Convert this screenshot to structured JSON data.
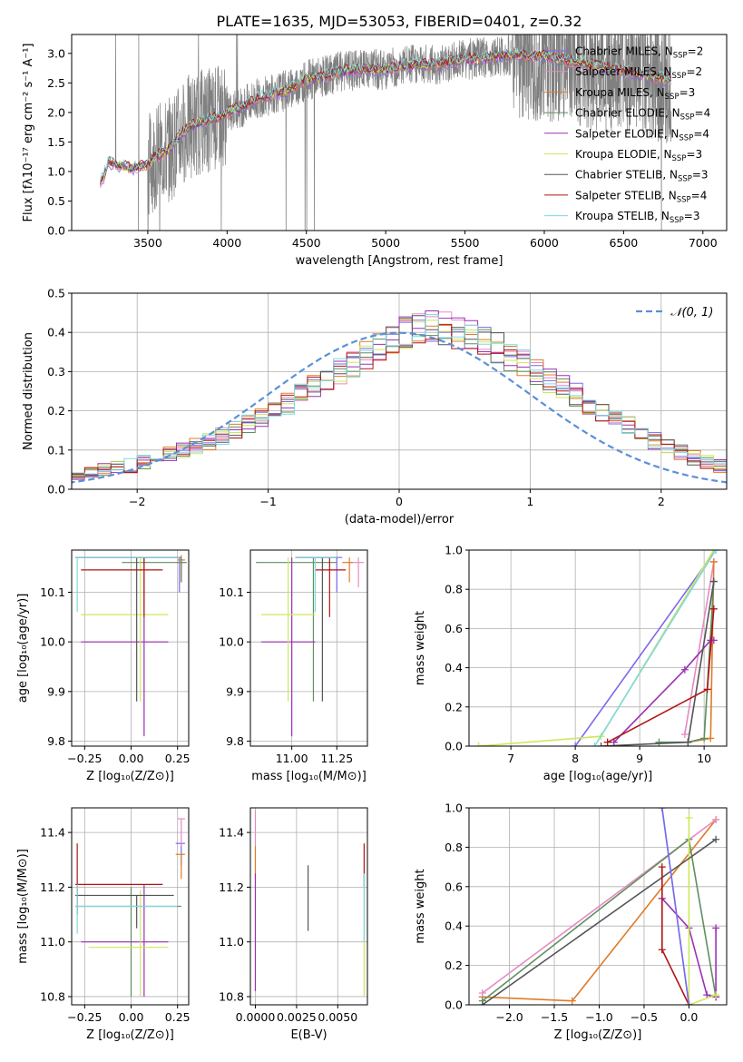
{
  "page_title": "PLATE=1635, MJD=53053, FIBERID=0401, z=0.32",
  "colors": {
    "chabrier_miles": "#7b68ee",
    "salpeter_miles": "#e78ac3",
    "kroupa_miles": "#e07b28",
    "chabrier_elodie": "#5f8f5f",
    "salpeter_elodie": "#9b30b5",
    "kroupa_elodie": "#cde85a",
    "chabrier_stelib": "#555555",
    "salpeter_stelib": "#b01515",
    "kroupa_stelib": "#80d8e0",
    "data": "#808080",
    "normal": "#5b8fd9"
  },
  "chart_data": [
    {
      "id": "spectrum",
      "type": "line",
      "title": "PLATE=1635, MJD=53053, FIBERID=0401, z=0.32",
      "xlabel": "wavelength [Angstrom, rest frame]",
      "ylabel": "Flux [fλ10⁻¹⁷ erg cm⁻² s⁻¹ A⁻¹]",
      "xlim": [
        3020,
        7150
      ],
      "ylim": [
        0,
        3.32
      ],
      "xticks": [
        3500,
        4000,
        4500,
        5000,
        5500,
        6000,
        6500,
        7000
      ],
      "yticks": [
        0.0,
        0.5,
        1.0,
        1.5,
        2.0,
        2.5,
        3.0
      ],
      "continuum": {
        "x": [
          3200,
          3220,
          3250,
          3300,
          3400,
          3500,
          3550,
          3650,
          3700,
          3750,
          3850,
          3950,
          4000,
          4100,
          4200,
          4300,
          4400,
          4500,
          4600,
          4700,
          4800,
          4900,
          5000,
          5100,
          5200,
          5300,
          5400,
          5500,
          5600,
          5700,
          5800,
          5900,
          6000,
          6100,
          6200,
          6300,
          6400,
          6500,
          6600,
          6700,
          6800
        ],
        "y": [
          0.82,
          0.9,
          1.15,
          1.12,
          1.05,
          1.12,
          1.25,
          1.4,
          1.6,
          1.75,
          1.85,
          1.92,
          2.0,
          2.1,
          2.25,
          2.32,
          2.4,
          2.55,
          2.6,
          2.68,
          2.72,
          2.74,
          2.72,
          2.78,
          2.82,
          2.8,
          2.85,
          2.9,
          2.92,
          2.95,
          2.98,
          2.96,
          2.95,
          2.9,
          2.85,
          2.8,
          2.75,
          2.7,
          2.65,
          2.6,
          2.55
        ]
      },
      "legend": [
        {
          "label": "Chabrier MILES, N",
          "sub": "SSP",
          "suffix": "=2",
          "color_key": "chabrier_miles"
        },
        {
          "label": "Salpeter MILES, N",
          "sub": "SSP",
          "suffix": "=2",
          "color_key": "salpeter_miles"
        },
        {
          "label": "Kroupa MILES, N",
          "sub": "SSP",
          "suffix": "=3",
          "color_key": "kroupa_miles"
        },
        {
          "label": "Chabrier ELODIE, N",
          "sub": "SSP",
          "suffix": "=4",
          "color_key": "chabrier_elodie"
        },
        {
          "label": "Salpeter ELODIE, N",
          "sub": "SSP",
          "suffix": "=4",
          "color_key": "salpeter_elodie"
        },
        {
          "label": "Kroupa ELODIE, N",
          "sub": "SSP",
          "suffix": "=3",
          "color_key": "kroupa_elodie"
        },
        {
          "label": "Chabrier STELIB, N",
          "sub": "SSP",
          "suffix": "=3",
          "color_key": "chabrier_stelib"
        },
        {
          "label": "Salpeter STELIB, N",
          "sub": "SSP",
          "suffix": "=4",
          "color_key": "salpeter_stelib"
        },
        {
          "label": "Kroupa STELIB, N",
          "sub": "SSP",
          "suffix": "=3",
          "color_key": "kroupa_stelib"
        }
      ]
    },
    {
      "id": "residuals",
      "type": "line",
      "xlabel": "(data-model)/error",
      "ylabel": "Normed distribution",
      "xlim": [
        -2.5,
        2.5
      ],
      "ylim": [
        0,
        0.5
      ],
      "xticks": [
        -2,
        -1,
        0,
        1,
        2
      ],
      "xticklabels": [
        "−2",
        "−1",
        "0",
        "1",
        "2"
      ],
      "yticks": [
        0.0,
        0.1,
        0.2,
        0.3,
        0.4,
        0.5
      ],
      "legend": "𝒩(0, 1)",
      "bin_width": 0.1,
      "base_hist": [
        0.015,
        0.02,
        0.025,
        0.03,
        0.035,
        0.04,
        0.045,
        0.05,
        0.055,
        0.06,
        0.07,
        0.08,
        0.09,
        0.1,
        0.11,
        0.12,
        0.135,
        0.15,
        0.165,
        0.18,
        0.2,
        0.22,
        0.24,
        0.26,
        0.28,
        0.3,
        0.32,
        0.34,
        0.36,
        0.38,
        0.4,
        0.41,
        0.42,
        0.41,
        0.4,
        0.39,
        0.38,
        0.36,
        0.34,
        0.32,
        0.3,
        0.28,
        0.26,
        0.24,
        0.22,
        0.2,
        0.18,
        0.16,
        0.14,
        0.125,
        0.11,
        0.095,
        0.08,
        0.07,
        0.06,
        0.05,
        0.045,
        0.04,
        0.035,
        0.03
      ]
    },
    {
      "id": "age-vs-z",
      "type": "scatter",
      "xlabel": "Z [log₁₀(Z/Z⊙)]",
      "ylabel": "age  [log₁₀(age/yr)]",
      "xlim": [
        -0.32,
        0.31
      ],
      "ylim": [
        9.79,
        10.185
      ],
      "xticks": [
        -0.25,
        0.0,
        0.25
      ],
      "xticklabels": [
        "−0.25",
        "0.00",
        "0.25"
      ],
      "yticks": [
        9.8,
        9.9,
        10.0,
        10.1
      ],
      "points": [
        {
          "c": "chabrier_miles",
          "x": 0.26,
          "y": 10.17,
          "xe": [
            -0.3,
            0.27
          ],
          "ye": [
            10.1,
            10.17
          ]
        },
        {
          "c": "salpeter_miles",
          "x": 0.27,
          "y": 10.16,
          "xe": [
            0.25,
            0.29
          ],
          "ye": [
            10.13,
            10.17
          ]
        },
        {
          "c": "kroupa_miles",
          "x": 0.27,
          "y": 10.165,
          "xe": [
            0.25,
            0.29
          ],
          "ye": [
            10.12,
            10.175
          ]
        },
        {
          "c": "chabrier_elodie",
          "x": 0.27,
          "y": 10.16,
          "xe": [
            -0.05,
            0.3
          ],
          "ye": [
            10.12,
            10.17
          ]
        },
        {
          "c": "salpeter_elodie",
          "x": 0.07,
          "y": 10.0,
          "xe": [
            -0.27,
            0.2
          ],
          "ye": [
            9.81,
            10.17
          ]
        },
        {
          "c": "kroupa_elodie",
          "x": 0.05,
          "y": 10.055,
          "xe": [
            -0.27,
            0.2
          ],
          "ye": [
            9.88,
            10.17
          ]
        },
        {
          "c": "chabrier_stelib",
          "x": 0.03,
          "y": 10.17,
          "xe": [
            -0.3,
            0.26
          ],
          "ye": [
            9.88,
            10.17
          ]
        },
        {
          "c": "salpeter_stelib",
          "x": 0.07,
          "y": 10.145,
          "xe": [
            -0.27,
            0.17
          ],
          "ye": [
            10.05,
            10.17
          ]
        },
        {
          "c": "kroupa_stelib",
          "x": -0.29,
          "y": 10.17,
          "xe": [
            -0.3,
            0.26
          ],
          "ye": [
            10.06,
            10.17
          ]
        }
      ]
    },
    {
      "id": "age-vs-mass",
      "type": "scatter",
      "xlabel": "mass [log₁₀(M/M⊙)]",
      "ylabel": "",
      "xlim": [
        10.77,
        11.42
      ],
      "ylim": [
        9.79,
        10.185
      ],
      "xticks": [
        11.0,
        11.25
      ],
      "xticklabels": [
        "11.00",
        "11.25"
      ],
      "yticks": [
        9.8,
        9.9,
        10.0,
        10.1
      ],
      "points": [
        {
          "c": "chabrier_miles",
          "x": 11.25,
          "y": 10.17,
          "xe": [
            11.02,
            11.28
          ],
          "ye": [
            10.1,
            10.17
          ]
        },
        {
          "c": "salpeter_miles",
          "x": 11.37,
          "y": 10.16,
          "xe": [
            11.33,
            11.4
          ],
          "ye": [
            10.11,
            10.17
          ]
        },
        {
          "c": "kroupa_miles",
          "x": 11.32,
          "y": 10.16,
          "xe": [
            11.28,
            11.34
          ],
          "ye": [
            10.12,
            10.17
          ]
        },
        {
          "c": "chabrier_elodie",
          "x": 11.12,
          "y": 10.16,
          "xe": [
            10.8,
            11.25
          ],
          "ye": [
            9.88,
            10.17
          ]
        },
        {
          "c": "salpeter_elodie",
          "x": 11.0,
          "y": 10.0,
          "xe": [
            10.83,
            11.13
          ],
          "ye": [
            9.81,
            10.17
          ]
        },
        {
          "c": "kroupa_elodie",
          "x": 10.98,
          "y": 10.055,
          "xe": [
            10.83,
            11.13
          ],
          "ye": [
            9.88,
            10.17
          ]
        },
        {
          "c": "chabrier_stelib",
          "x": 11.17,
          "y": 10.17,
          "xe": [
            11.02,
            11.25
          ],
          "ye": [
            9.88,
            10.17
          ]
        },
        {
          "c": "salpeter_stelib",
          "x": 11.21,
          "y": 10.145,
          "xe": [
            11.13,
            11.3
          ],
          "ye": [
            10.05,
            10.17
          ]
        },
        {
          "c": "kroupa_stelib",
          "x": 11.13,
          "y": 10.17,
          "xe": [
            11.02,
            11.25
          ],
          "ye": [
            10.06,
            10.17
          ]
        }
      ]
    },
    {
      "id": "massweight-vs-age",
      "type": "line",
      "xlabel": "age  [log₁₀(age/yr)]",
      "ylabel": "mass weight",
      "xlim": [
        6.35,
        10.35
      ],
      "ylim": [
        0,
        1
      ],
      "xticks": [
        7,
        8,
        9,
        10
      ],
      "yticks": [
        0.0,
        0.2,
        0.4,
        0.6,
        0.8,
        1.0
      ],
      "series": [
        {
          "c": "chabrier_miles",
          "x": [
            8.0,
            10.18
          ],
          "y": [
            0.0,
            1.0
          ]
        },
        {
          "c": "salpeter_miles",
          "x": [
            9.7,
            10.15
          ],
          "y": [
            0.06,
            0.94
          ]
        },
        {
          "c": "kroupa_miles",
          "x": [
            9.75,
            10.1,
            10.15
          ],
          "y": [
            0.02,
            0.04,
            0.94
          ]
        },
        {
          "c": "chabrier_elodie",
          "x": [
            9.3,
            9.75,
            10.0,
            10.15
          ],
          "y": [
            0.02,
            0.02,
            0.04,
            0.84
          ]
        },
        {
          "c": "salpeter_elodie",
          "x": [
            8.6,
            9.7,
            10.1,
            10.15
          ],
          "y": [
            0.02,
            0.39,
            0.54,
            0.54
          ]
        },
        {
          "c": "kroupa_elodie",
          "x": [
            6.5,
            8.4,
            10.15
          ],
          "y": [
            0.0,
            0.05,
            1.0
          ]
        },
        {
          "c": "chabrier_stelib",
          "x": [
            8.4,
            9.75,
            10.15
          ],
          "y": [
            0.0,
            0.02,
            0.84
          ]
        },
        {
          "c": "salpeter_stelib",
          "x": [
            8.5,
            10.05,
            10.15
          ],
          "y": [
            0.02,
            0.29,
            0.7
          ]
        },
        {
          "c": "kroupa_stelib",
          "x": [
            8.3,
            10.18
          ],
          "y": [
            0.0,
            1.0
          ]
        }
      ]
    },
    {
      "id": "mass-vs-z",
      "type": "scatter",
      "xlabel": "Z [log₁₀(Z/Z⊙)]",
      "ylabel": "mass [log₁₀(M/M⊙)]",
      "xlim": [
        -0.32,
        0.31
      ],
      "ylim": [
        10.77,
        11.49
      ],
      "xticks": [
        -0.25,
        0.0,
        0.25
      ],
      "xticklabels": [
        "−0.25",
        "0.00",
        "0.25"
      ],
      "yticks": [
        10.8,
        11.0,
        11.2,
        11.4
      ],
      "points": [
        {
          "c": "chabrier_miles",
          "x": 0.27,
          "y": 11.36,
          "xe": [
            0.24,
            0.29
          ],
          "ye": [
            11.28,
            11.36
          ]
        },
        {
          "c": "salpeter_miles",
          "x": 0.27,
          "y": 11.45,
          "xe": [
            0.25,
            0.29
          ],
          "ye": [
            11.35,
            11.45
          ]
        },
        {
          "c": "kroupa_miles",
          "x": 0.27,
          "y": 11.32,
          "xe": [
            0.24,
            0.29
          ],
          "ye": [
            11.23,
            11.32
          ]
        },
        {
          "c": "chabrier_elodie",
          "x": 0.0,
          "y": 11.13,
          "xe": [
            -0.3,
            0.27
          ],
          "ye": [
            10.8,
            11.2
          ]
        },
        {
          "c": "salpeter_elodie",
          "x": 0.07,
          "y": 11.0,
          "xe": [
            -0.27,
            0.2
          ],
          "ye": [
            10.8,
            11.21
          ]
        },
        {
          "c": "kroupa_elodie",
          "x": 0.05,
          "y": 10.98,
          "xe": [
            -0.23,
            0.2
          ],
          "ye": [
            10.8,
            11.19
          ]
        },
        {
          "c": "chabrier_stelib",
          "x": 0.03,
          "y": 11.17,
          "xe": [
            -0.3,
            0.23
          ],
          "ye": [
            11.05,
            11.17
          ]
        },
        {
          "c": "salpeter_stelib",
          "x": -0.29,
          "y": 11.21,
          "xe": [
            -0.3,
            0.17
          ],
          "ye": [
            11.1,
            11.36
          ]
        },
        {
          "c": "kroupa_stelib",
          "x": -0.29,
          "y": 11.13,
          "xe": [
            -0.3,
            0.25
          ],
          "ye": [
            11.03,
            11.21
          ]
        }
      ]
    },
    {
      "id": "mass-vs-ebv",
      "type": "scatter",
      "xlabel": "E(B-V)",
      "ylabel": "",
      "xlim": [
        -0.0003,
        0.0068
      ],
      "ylim": [
        10.77,
        11.49
      ],
      "xticks": [
        0.0,
        0.0025,
        0.005
      ],
      "xticklabels": [
        "0.0000",
        "0.0025",
        "0.0050"
      ],
      "yticks": [
        10.8,
        11.0,
        11.2,
        11.4
      ],
      "points": [
        {
          "c": "salpeter_miles",
          "x": 0.0,
          "y": 11.45,
          "xe": [
            0.0,
            0.0
          ],
          "ye": [
            11.35,
            11.48
          ]
        },
        {
          "c": "kroupa_miles",
          "x": 0.0,
          "y": 11.32,
          "xe": [
            0.0,
            0.0
          ],
          "ye": [
            11.23,
            11.35
          ]
        },
        {
          "c": "salpeter_elodie",
          "x": 0.0,
          "y": 11.0,
          "xe": [
            0.0,
            0.0
          ],
          "ye": [
            10.82,
            11.25
          ]
        },
        {
          "c": "chabrier_stelib",
          "x": 0.0032,
          "y": 11.17,
          "xe": [
            0.0032,
            0.0032
          ],
          "ye": [
            11.04,
            11.28
          ]
        },
        {
          "c": "salpeter_stelib",
          "x": 0.0066,
          "y": 11.3,
          "xe": [
            0.0066,
            0.0066
          ],
          "ye": [
            11.2,
            11.36
          ]
        },
        {
          "c": "kroupa_elodie",
          "x": 0.0066,
          "y": 11.0,
          "xe": [
            0.0066,
            0.0066
          ],
          "ye": [
            10.8,
            11.2
          ]
        },
        {
          "c": "kroupa_stelib",
          "x": 0.0066,
          "y": 11.1,
          "xe": [
            0.0066,
            0.0066
          ],
          "ye": [
            11.0,
            11.25
          ]
        }
      ]
    },
    {
      "id": "massweight-vs-z",
      "type": "line",
      "xlabel": "Z [log₁₀(Z/Z⊙)]",
      "ylabel": "mass weight",
      "xlim": [
        -2.45,
        0.42
      ],
      "ylim": [
        0,
        1
      ],
      "xticks": [
        -2.0,
        -1.5,
        -1.0,
        -0.5,
        0.0
      ],
      "xticklabels": [
        "−2.0",
        "−1.5",
        "−1.0",
        "−0.5",
        "0.0"
      ],
      "yticks": [
        0.0,
        0.2,
        0.4,
        0.6,
        0.8,
        1.0
      ],
      "series": [
        {
          "c": "kroupa_miles",
          "x": [
            -2.3,
            -1.3,
            0.3
          ],
          "y": [
            0.04,
            0.02,
            0.94
          ]
        },
        {
          "c": "salpeter_miles",
          "x": [
            -2.3,
            0.3
          ],
          "y": [
            0.06,
            0.94
          ]
        },
        {
          "c": "chabrier_elodie",
          "x": [
            -2.3,
            0.0,
            0.3
          ],
          "y": [
            0.02,
            0.84,
            0.04
          ]
        },
        {
          "c": "salpeter_elodie",
          "x": [
            -0.3,
            0.0,
            0.2,
            0.3,
            0.3
          ],
          "y": [
            0.54,
            0.39,
            0.05,
            0.04,
            0.39
          ]
        },
        {
          "c": "kroupa_elodie",
          "x": [
            0.0,
            0.0,
            0.3
          ],
          "y": [
            0.95,
            0.0,
            0.05
          ]
        },
        {
          "c": "chabrier_stelib",
          "x": [
            -2.3,
            0.3
          ],
          "y": [
            0.0,
            0.84
          ]
        },
        {
          "c": "salpeter_stelib",
          "x": [
            -0.3,
            -0.3,
            0.0
          ],
          "y": [
            0.7,
            0.28,
            0.0
          ]
        },
        {
          "c": "kroupa_stelib",
          "x": [
            -0.3,
            0.0
          ],
          "y": [
            1.0,
            0.0
          ]
        },
        {
          "c": "chabrier_miles",
          "x": [
            -0.3,
            0.0
          ],
          "y": [
            1.0,
            0.0
          ]
        }
      ]
    }
  ]
}
